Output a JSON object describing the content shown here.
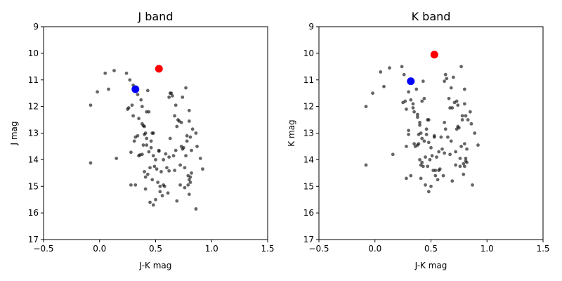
{
  "chart_data": [
    {
      "type": "scatter",
      "title": "J band",
      "xlabel": "J-K mag",
      "ylabel": "J mag",
      "xlim": [
        -0.5,
        1.5
      ],
      "ylim": [
        17,
        9
      ],
      "y_inverted": true,
      "grid": false,
      "xticks": [
        "−0.5",
        "0.0",
        "0.5",
        "1.0",
        "1.5"
      ],
      "yticks": [
        "9",
        "10",
        "11",
        "12",
        "13",
        "14",
        "15",
        "16",
        "17"
      ],
      "series": [
        {
          "color": "#000000",
          "opacity": 0.6,
          "marker": "small-circle",
          "points": [
            [
              -0.08,
              11.95
            ],
            [
              -0.08,
              14.12
            ],
            [
              -0.02,
              11.45
            ],
            [
              0.05,
              10.75
            ],
            [
              0.08,
              11.35
            ],
            [
              0.13,
              10.65
            ],
            [
              0.15,
              13.95
            ],
            [
              0.24,
              10.75
            ],
            [
              0.25,
              12.1
            ],
            [
              0.26,
              12.05
            ],
            [
              0.27,
              11.0
            ],
            [
              0.28,
              13.72
            ],
            [
              0.28,
              14.95
            ],
            [
              0.29,
              11.95
            ],
            [
              0.3,
              11.2
            ],
            [
              0.3,
              12.35
            ],
            [
              0.31,
              13.3
            ],
            [
              0.32,
              13.15
            ],
            [
              0.32,
              14.95
            ],
            [
              0.34,
              11.55
            ],
            [
              0.34,
              13.1
            ],
            [
              0.35,
              12.45
            ],
            [
              0.35,
              13.85
            ],
            [
              0.36,
              13.82
            ],
            [
              0.37,
              11.75
            ],
            [
              0.38,
              12.0
            ],
            [
              0.38,
              12.65
            ],
            [
              0.38,
              13.8
            ],
            [
              0.39,
              12.72
            ],
            [
              0.39,
              13.45
            ],
            [
              0.4,
              12.75
            ],
            [
              0.4,
              13.05
            ],
            [
              0.4,
              14.45
            ],
            [
              0.41,
              13.0
            ],
            [
              0.41,
              14.65
            ],
            [
              0.41,
              15.1
            ],
            [
              0.42,
              12.2
            ],
            [
              0.42,
              13.2
            ],
            [
              0.42,
              13.45
            ],
            [
              0.43,
              11.4
            ],
            [
              0.43,
              14.55
            ],
            [
              0.44,
              12.2
            ],
            [
              0.44,
              13.7
            ],
            [
              0.45,
              14.3
            ],
            [
              0.45,
              15.6
            ],
            [
              0.46,
              13.3
            ],
            [
              0.46,
              13.55
            ],
            [
              0.47,
              13.0
            ],
            [
              0.47,
              14.75
            ],
            [
              0.48,
              13.0
            ],
            [
              0.48,
              13.85
            ],
            [
              0.48,
              15.7
            ],
            [
              0.49,
              14.25
            ],
            [
              0.5,
              14.0
            ],
            [
              0.5,
              15.5
            ],
            [
              0.51,
              14.35
            ],
            [
              0.52,
              14.85
            ],
            [
              0.53,
              13.65
            ],
            [
              0.53,
              13.68
            ],
            [
              0.54,
              15.0
            ],
            [
              0.54,
              15.2
            ],
            [
              0.55,
              14.45
            ],
            [
              0.56,
              15.35
            ],
            [
              0.57,
              14.0
            ],
            [
              0.57,
              14.95
            ],
            [
              0.58,
              15.0
            ],
            [
              0.59,
              13.78
            ],
            [
              0.6,
              14.3
            ],
            [
              0.61,
              15.25
            ],
            [
              0.62,
              11.65
            ],
            [
              0.62,
              13.9
            ],
            [
              0.62,
              14.42
            ],
            [
              0.63,
              11.5
            ],
            [
              0.63,
              13.2
            ],
            [
              0.64,
              11.5
            ],
            [
              0.65,
              11.6
            ],
            [
              0.66,
              13.85
            ],
            [
              0.67,
              12.35
            ],
            [
              0.67,
              14.4
            ],
            [
              0.68,
              11.95
            ],
            [
              0.68,
              13.65
            ],
            [
              0.69,
              12.75
            ],
            [
              0.69,
              15.55
            ],
            [
              0.7,
              12.5
            ],
            [
              0.71,
              12.55
            ],
            [
              0.72,
              14.2
            ],
            [
              0.72,
              14.95
            ],
            [
              0.73,
              12.6
            ],
            [
              0.73,
              13.5
            ],
            [
              0.74,
              11.65
            ],
            [
              0.74,
              13.6
            ],
            [
              0.75,
              13.55
            ],
            [
              0.76,
              14.3
            ],
            [
              0.76,
              15.05
            ],
            [
              0.77,
              11.3
            ],
            [
              0.77,
              13.85
            ],
            [
              0.78,
              13.1
            ],
            [
              0.78,
              13.3
            ],
            [
              0.79,
              14.6
            ],
            [
              0.79,
              14.95
            ],
            [
              0.8,
              12.15
            ],
            [
              0.8,
              12.55
            ],
            [
              0.8,
              14.75
            ],
            [
              0.8,
              15.3
            ],
            [
              0.81,
              13.15
            ],
            [
              0.81,
              14.65
            ],
            [
              0.81,
              14.85
            ],
            [
              0.82,
              13.65
            ],
            [
              0.82,
              14.5
            ],
            [
              0.83,
              12.85
            ],
            [
              0.86,
              13.0
            ],
            [
              0.86,
              15.85
            ],
            [
              0.87,
              13.5
            ],
            [
              0.9,
              13.95
            ],
            [
              0.92,
              14.35
            ]
          ]
        },
        {
          "color": "#ff0000",
          "marker": "large-circle",
          "points": [
            [
              0.53,
              10.58
            ]
          ]
        },
        {
          "color": "#0000ff",
          "marker": "large-circle",
          "points": [
            [
              0.32,
              11.35
            ]
          ]
        }
      ]
    },
    {
      "type": "scatter",
      "title": "K band",
      "xlabel": "J-K mag",
      "ylabel": "K mag",
      "xlim": [
        -0.5,
        1.5
      ],
      "ylim": [
        17,
        9
      ],
      "y_inverted": true,
      "grid": false,
      "xticks": [
        "−0.5",
        "0.0",
        "0.5",
        "1.0",
        "1.5"
      ],
      "yticks": [
        "9",
        "10",
        "11",
        "12",
        "13",
        "14",
        "15",
        "16",
        "17"
      ],
      "series": [
        {
          "color": "#000000",
          "opacity": 0.6,
          "marker": "small-circle",
          "points": [
            [
              -0.08,
              12.0
            ],
            [
              -0.08,
              14.2
            ],
            [
              -0.02,
              11.5
            ],
            [
              0.05,
              10.7
            ],
            [
              0.08,
              11.25
            ],
            [
              0.13,
              10.55
            ],
            [
              0.16,
              13.8
            ],
            [
              0.24,
              10.5
            ],
            [
              0.25,
              11.85
            ],
            [
              0.26,
              10.8
            ],
            [
              0.27,
              11.8
            ],
            [
              0.28,
              12.1
            ],
            [
              0.28,
              13.5
            ],
            [
              0.28,
              14.7
            ],
            [
              0.3,
              11.45
            ],
            [
              0.3,
              12.9
            ],
            [
              0.3,
              13.05
            ],
            [
              0.32,
              11.75
            ],
            [
              0.32,
              14.6
            ],
            [
              0.34,
              11.9
            ],
            [
              0.34,
              12.05
            ],
            [
              0.35,
              12.2
            ],
            [
              0.35,
              13.4
            ],
            [
              0.36,
              13.5
            ],
            [
              0.37,
              11.35
            ],
            [
              0.38,
              12.3
            ],
            [
              0.38,
              12.4
            ],
            [
              0.38,
              13.45
            ],
            [
              0.39,
              13.05
            ],
            [
              0.39,
              13.4
            ],
            [
              0.4,
              12.6
            ],
            [
              0.4,
              12.7
            ],
            [
              0.4,
              14.0
            ],
            [
              0.41,
              13.0
            ],
            [
              0.41,
              14.2
            ],
            [
              0.41,
              14.7
            ],
            [
              0.42,
              11.8
            ],
            [
              0.42,
              13.2
            ],
            [
              0.42,
              14.1
            ],
            [
              0.43,
              11.05
            ],
            [
              0.43,
              14.25
            ],
            [
              0.44,
              11.7
            ],
            [
              0.44,
              13.3
            ],
            [
              0.45,
              13.9
            ],
            [
              0.45,
              14.95
            ],
            [
              0.46,
              12.85
            ],
            [
              0.46,
              13.05
            ],
            [
              0.47,
              12.5
            ],
            [
              0.47,
              14.25
            ],
            [
              0.48,
              12.5
            ],
            [
              0.48,
              13.35
            ],
            [
              0.48,
              15.2
            ],
            [
              0.49,
              14.0
            ],
            [
              0.5,
              13.55
            ],
            [
              0.5,
              15.0
            ],
            [
              0.51,
              13.85
            ],
            [
              0.52,
              14.4
            ],
            [
              0.53,
              13.1
            ],
            [
              0.53,
              13.15
            ],
            [
              0.54,
              14.4
            ],
            [
              0.54,
              14.6
            ],
            [
              0.55,
              13.9
            ],
            [
              0.56,
              14.75
            ],
            [
              0.57,
              13.7
            ],
            [
              0.57,
              14.4
            ],
            [
              0.58,
              14.35
            ],
            [
              0.59,
              13.15
            ],
            [
              0.6,
              13.6
            ],
            [
              0.61,
              14.6
            ],
            [
              0.62,
              11.05
            ],
            [
              0.62,
              13.75
            ],
            [
              0.62,
              12.6
            ],
            [
              0.63,
              10.8
            ],
            [
              0.63,
              12.85
            ],
            [
              0.64,
              10.95
            ],
            [
              0.65,
              13.15
            ],
            [
              0.66,
              11.7
            ],
            [
              0.67,
              12.05
            ],
            [
              0.67,
              13.8
            ],
            [
              0.68,
              11.3
            ],
            [
              0.68,
              13.3
            ],
            [
              0.69,
              12.05
            ],
            [
              0.69,
              14.8
            ],
            [
              0.7,
              10.9
            ],
            [
              0.71,
              11.85
            ],
            [
              0.72,
              13.7
            ],
            [
              0.72,
              14.2
            ],
            [
              0.73,
              11.8
            ],
            [
              0.73,
              12.85
            ],
            [
              0.74,
              11.95
            ],
            [
              0.74,
              12.75
            ],
            [
              0.75,
              12.8
            ],
            [
              0.76,
              13.95
            ],
            [
              0.76,
              14.25
            ],
            [
              0.77,
              10.5
            ],
            [
              0.77,
              13.5
            ],
            [
              0.78,
              12.35
            ],
            [
              0.78,
              12.5
            ],
            [
              0.79,
              14.15
            ],
            [
              0.79,
              14.55
            ],
            [
              0.8,
              11.35
            ],
            [
              0.8,
              11.9
            ],
            [
              0.8,
              14.25
            ],
            [
              0.8,
              13.4
            ],
            [
              0.81,
              12.35
            ],
            [
              0.81,
              14.05
            ],
            [
              0.81,
              13.95
            ],
            [
              0.82,
              13.6
            ],
            [
              0.82,
              14.1
            ],
            [
              0.83,
              12.5
            ],
            [
              0.85,
              12.2
            ],
            [
              0.86,
              12.65
            ],
            [
              0.87,
              14.95
            ],
            [
              0.89,
              13.0
            ],
            [
              0.92,
              13.45
            ]
          ]
        },
        {
          "color": "#ff0000",
          "marker": "large-circle",
          "points": [
            [
              0.53,
              10.05
            ]
          ]
        },
        {
          "color": "#0000ff",
          "marker": "large-circle",
          "points": [
            [
              0.32,
              11.05
            ]
          ]
        }
      ]
    }
  ]
}
